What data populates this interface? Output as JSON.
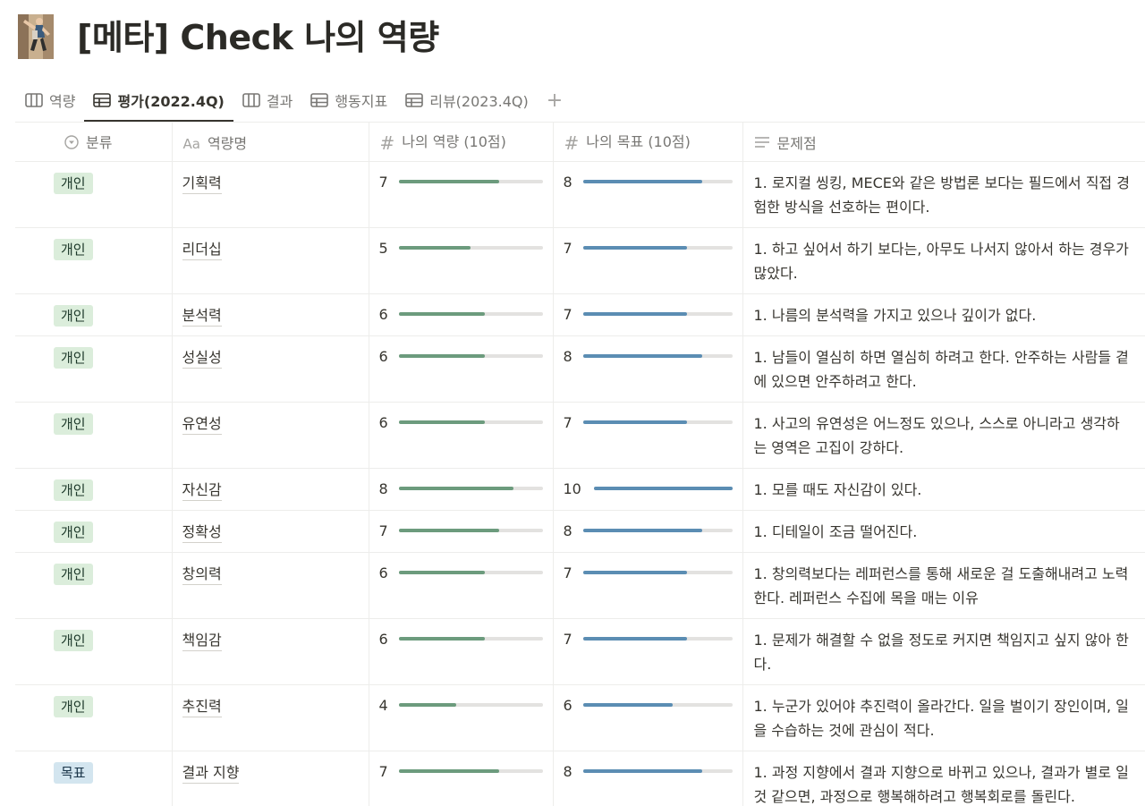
{
  "page": {
    "title": "[메타] Check 나의 역량",
    "icon": "climber-image-icon"
  },
  "views": [
    {
      "label": "역량",
      "icon": "board-icon"
    },
    {
      "label": "평가(2022.4Q)",
      "icon": "table-icon",
      "active": true
    },
    {
      "label": "결과",
      "icon": "board-icon"
    },
    {
      "label": "행동지표",
      "icon": "table-icon"
    },
    {
      "label": "리뷰(2023.4Q)",
      "icon": "table-icon"
    }
  ],
  "add_view_label": "+",
  "columns": {
    "category": "분류",
    "name": "역량명",
    "my_score": "나의 역량 (10점)",
    "my_goal": "나의 목표 (10점)",
    "problem": "문제점"
  },
  "column_icons": {
    "category": "select-icon",
    "name": "Aa",
    "my_score": "#",
    "my_goal": "#",
    "problem": "text-lines-icon"
  },
  "colors": {
    "tag_personal_bg": "#dbeddb",
    "tag_goal_bg": "#d3e5ef",
    "score_bar": "#6c9b7d",
    "goal_bar": "#5b8db3"
  },
  "rows": [
    {
      "category": "개인",
      "tag_color": "green",
      "name": "기획력",
      "score": "7",
      "goal": "8",
      "problem": "1. 로지컬 씽킹, MECE와 같은 방법론 보다는 필드에서 직접 경험한 방식을 선호하는 편이다."
    },
    {
      "category": "개인",
      "tag_color": "green",
      "name": "리더십",
      "score": "5",
      "goal": "7",
      "problem": "1. 하고 싶어서 하기 보다는, 아무도 나서지 않아서 하는 경우가 많았다."
    },
    {
      "category": "개인",
      "tag_color": "green",
      "name": "분석력",
      "score": "6",
      "goal": "7",
      "problem": "1. 나름의 분석력을 가지고 있으나 깊이가 없다."
    },
    {
      "category": "개인",
      "tag_color": "green",
      "name": "성실성",
      "score": "6",
      "goal": "8",
      "problem": "1. 남들이 열심히 하면 열심히 하려고 한다. 안주하는 사람들 곁에 있으면 안주하려고 한다."
    },
    {
      "category": "개인",
      "tag_color": "green",
      "name": "유연성",
      "score": "6",
      "goal": "7",
      "problem": "1. 사고의 유연성은 어느정도 있으나, 스스로 아니라고 생각하는 영역은 고집이 강하다."
    },
    {
      "category": "개인",
      "tag_color": "green",
      "name": "자신감",
      "score": "8",
      "goal": "10",
      "problem": "1. 모를 때도 자신감이 있다."
    },
    {
      "category": "개인",
      "tag_color": "green",
      "name": "정확성",
      "score": "7",
      "goal": "8",
      "problem": "1. 디테일이 조금 떨어진다."
    },
    {
      "category": "개인",
      "tag_color": "green",
      "name": "창의력",
      "score": "6",
      "goal": "7",
      "problem": "1. 창의력보다는 레퍼런스를 통해 새로운 걸 도출해내려고 노력한다. 레퍼런스 수집에 목을 매는 이유"
    },
    {
      "category": "개인",
      "tag_color": "green",
      "name": "책임감",
      "score": "6",
      "goal": "7",
      "problem": "1. 문제가 해결할 수 없을 정도로 커지면 책임지고 싶지 않아 한다."
    },
    {
      "category": "개인",
      "tag_color": "green",
      "name": "추진력",
      "score": "4",
      "goal": "6",
      "problem": "1. 누군가 있어야 추진력이 올라간다. 일을 벌이기 장인이며, 일을 수습하는 것에 관심이 적다."
    },
    {
      "category": "목표",
      "tag_color": "blue",
      "name": "결과 지향",
      "score": "7",
      "goal": "8",
      "problem": "1. 과정 지향에서 결과 지향으로 바뀌고 있으나, 결과가 별로 일 것 같으면, 과정으로 행복해하려고 행복회로를 돌린다."
    }
  ],
  "score_max": 10
}
